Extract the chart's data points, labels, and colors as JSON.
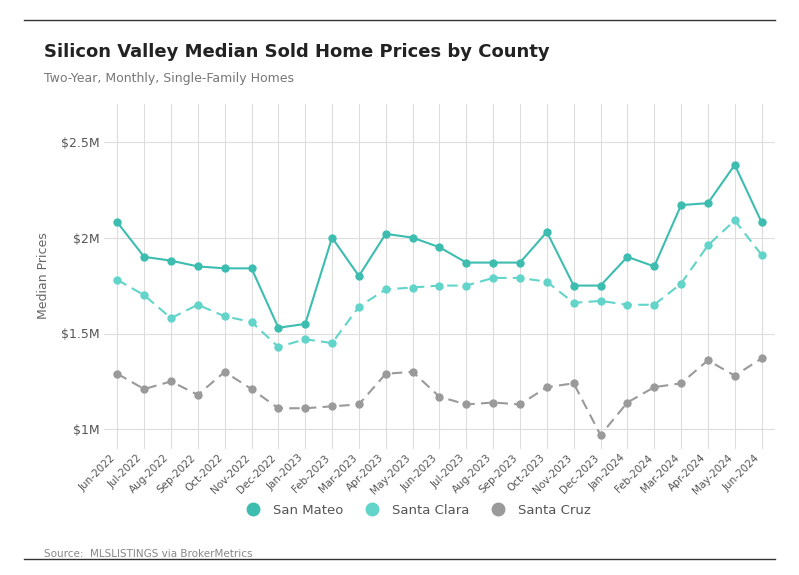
{
  "title": "Silicon Valley Median Sold Home Prices by County",
  "subtitle": "Two-Year, Monthly, Single-Family Homes",
  "source": "Source:  MLSLISTINGS via BrokerMetrics",
  "ylabel": "Median Prices",
  "months": [
    "Jun-2022",
    "Jul-2022",
    "Aug-2022",
    "Sep-2022",
    "Oct-2022",
    "Nov-2022",
    "Dec-2022",
    "Jan-2023",
    "Feb-2023",
    "Mar-2023",
    "Apr-2023",
    "May-2023",
    "Jun-2023",
    "Jul-2023",
    "Aug-2023",
    "Sep-2023",
    "Oct-2023",
    "Nov-2023",
    "Dec-2023",
    "Jan-2024",
    "Feb-2024",
    "Mar-2024",
    "Apr-2024",
    "May-2024",
    "Jun-2024"
  ],
  "san_mateo": [
    2080000,
    1900000,
    1880000,
    1850000,
    1840000,
    1840000,
    1530000,
    1550000,
    2000000,
    1800000,
    2020000,
    2000000,
    1950000,
    1870000,
    1870000,
    1870000,
    2030000,
    1750000,
    1750000,
    1900000,
    1850000,
    2170000,
    2180000,
    2380000,
    2080000
  ],
  "santa_clara": [
    1780000,
    1700000,
    1580000,
    1650000,
    1590000,
    1560000,
    1430000,
    1470000,
    1450000,
    1640000,
    1730000,
    1740000,
    1750000,
    1750000,
    1790000,
    1790000,
    1770000,
    1660000,
    1670000,
    1650000,
    1650000,
    1760000,
    1960000,
    2090000,
    1910000
  ],
  "santa_cruz": [
    1290000,
    1210000,
    1250000,
    1180000,
    1300000,
    1210000,
    1110000,
    1110000,
    1120000,
    1130000,
    1290000,
    1300000,
    1170000,
    1130000,
    1140000,
    1130000,
    1220000,
    1240000,
    970000,
    1140000,
    1220000,
    1240000,
    1360000,
    1280000,
    1370000
  ],
  "san_mateo_color": "#3dbdb0",
  "santa_clara_color": "#62d4ca",
  "santa_cruz_color": "#9a9a9a",
  "ylim_min": 900000,
  "ylim_max": 2700000,
  "yticks": [
    1000000,
    1500000,
    2000000,
    2500000
  ],
  "ytick_labels": [
    "$1M",
    "$1.5M",
    "$2M",
    "$2.5M"
  ],
  "background_color": "#ffffff",
  "plot_bg_color": "#ffffff",
  "grid_color": "#dddddd",
  "border_color": "#333333"
}
